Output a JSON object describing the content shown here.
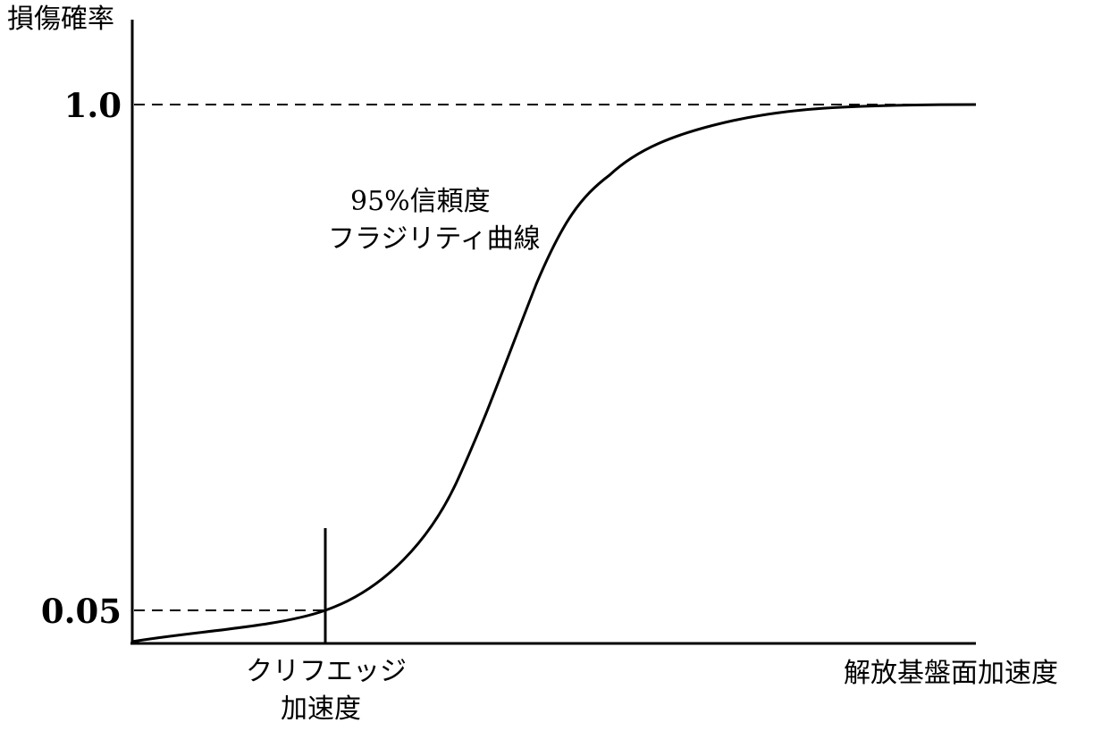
{
  "figure": {
    "ylabel": "損傷確率",
    "xlabel": "解放基盤面加速度",
    "yticks": [
      "1.0",
      "0.05"
    ],
    "curve_label": [
      "95%信頼度",
      "フラジリティ曲線"
    ],
    "cliff_edge_label": [
      "クリフエッジ",
      "加速度"
    ],
    "line_color": "#000000",
    "background_color": "#ffffff"
  }
}
